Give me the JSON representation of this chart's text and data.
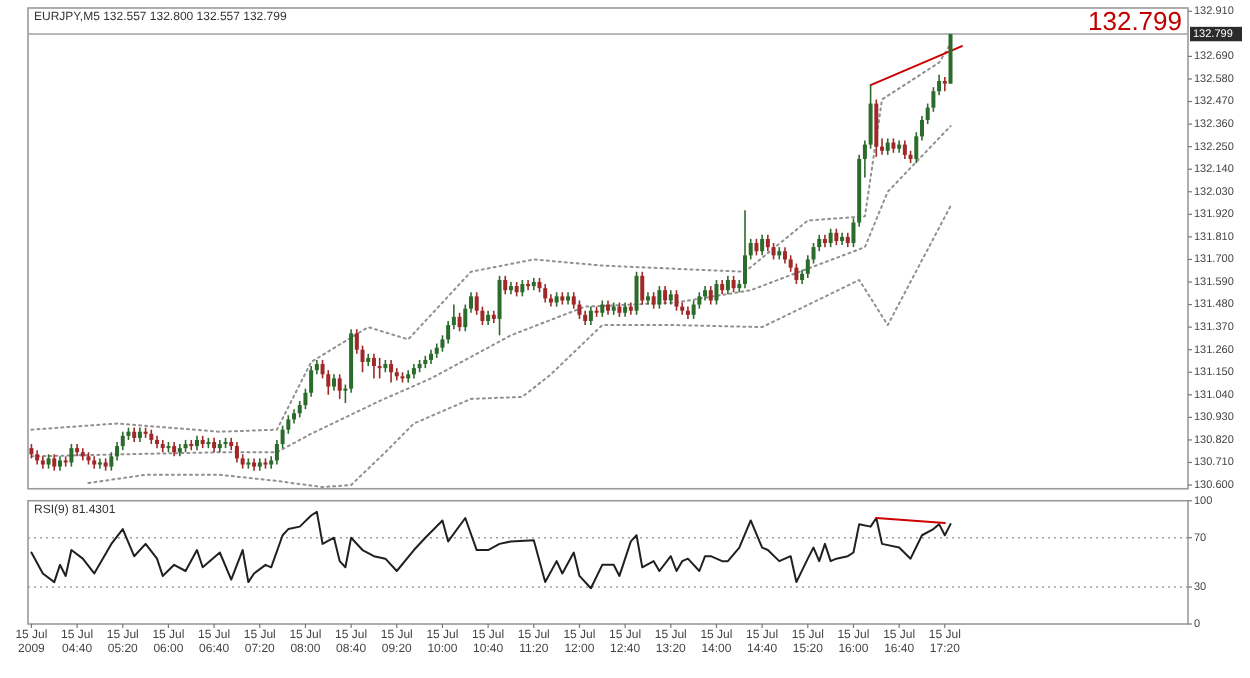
{
  "chart_data": [
    {
      "type": "candlestick",
      "title": "EURJPY,M5 132.557 132.800 132.557 132.799",
      "annotations": [
        "132.799"
      ],
      "x": [
        "2009-07-15T04:00",
        "2009-07-15T04:05",
        "2009-07-15T04:10",
        "2009-07-15T04:15",
        "2009-07-15T04:20",
        "2009-07-15T04:25",
        "2009-07-15T04:30",
        "2009-07-15T04:35",
        "2009-07-15T04:40",
        "2009-07-15T04:45",
        "2009-07-15T04:50",
        "2009-07-15T04:55",
        "2009-07-15T05:00",
        "2009-07-15T05:05",
        "2009-07-15T05:10",
        "2009-07-15T05:15",
        "2009-07-15T05:20",
        "2009-07-15T05:25",
        "2009-07-15T05:30",
        "2009-07-15T05:35",
        "2009-07-15T05:40",
        "2009-07-15T05:45",
        "2009-07-15T05:50",
        "2009-07-15T05:55",
        "2009-07-15T06:00",
        "2009-07-15T06:05",
        "2009-07-15T06:10",
        "2009-07-15T06:15",
        "2009-07-15T06:20",
        "2009-07-15T06:25",
        "2009-07-15T06:30",
        "2009-07-15T06:35",
        "2009-07-15T06:40",
        "2009-07-15T06:45",
        "2009-07-15T06:50",
        "2009-07-15T06:55",
        "2009-07-15T07:00",
        "2009-07-15T07:05",
        "2009-07-15T07:10",
        "2009-07-15T07:15",
        "2009-07-15T07:20",
        "2009-07-15T07:25",
        "2009-07-15T07:30",
        "2009-07-15T07:35",
        "2009-07-15T07:40",
        "2009-07-15T07:45",
        "2009-07-15T07:50",
        "2009-07-15T07:55",
        "2009-07-15T08:00",
        "2009-07-15T08:05",
        "2009-07-15T08:10",
        "2009-07-15T08:15",
        "2009-07-15T08:20",
        "2009-07-15T08:25",
        "2009-07-15T08:30",
        "2009-07-15T08:35",
        "2009-07-15T08:40",
        "2009-07-15T08:45",
        "2009-07-15T08:50",
        "2009-07-15T08:55",
        "2009-07-15T09:00",
        "2009-07-15T09:05",
        "2009-07-15T09:10",
        "2009-07-15T09:15",
        "2009-07-15T09:20",
        "2009-07-15T09:25",
        "2009-07-15T09:30",
        "2009-07-15T09:35",
        "2009-07-15T09:40",
        "2009-07-15T09:45",
        "2009-07-15T09:50",
        "2009-07-15T09:55",
        "2009-07-15T10:00",
        "2009-07-15T10:05",
        "2009-07-15T10:10",
        "2009-07-15T10:15",
        "2009-07-15T10:20",
        "2009-07-15T10:25",
        "2009-07-15T10:30",
        "2009-07-15T10:35",
        "2009-07-15T10:40",
        "2009-07-15T10:45",
        "2009-07-15T10:50",
        "2009-07-15T10:55",
        "2009-07-15T11:00",
        "2009-07-15T11:05",
        "2009-07-15T11:10",
        "2009-07-15T11:15",
        "2009-07-15T11:20",
        "2009-07-15T11:25",
        "2009-07-15T11:30",
        "2009-07-15T11:35",
        "2009-07-15T11:40",
        "2009-07-15T11:45",
        "2009-07-15T11:50",
        "2009-07-15T11:55",
        "2009-07-15T12:00",
        "2009-07-15T12:05",
        "2009-07-15T12:10",
        "2009-07-15T12:15",
        "2009-07-15T12:20",
        "2009-07-15T12:25",
        "2009-07-15T12:30",
        "2009-07-15T12:35",
        "2009-07-15T12:40",
        "2009-07-15T12:45",
        "2009-07-15T12:50",
        "2009-07-15T12:55",
        "2009-07-15T13:00",
        "2009-07-15T13:05",
        "2009-07-15T13:10",
        "2009-07-15T13:15",
        "2009-07-15T13:20",
        "2009-07-15T13:25",
        "2009-07-15T13:30",
        "2009-07-15T13:35",
        "2009-07-15T13:40",
        "2009-07-15T13:45",
        "2009-07-15T13:50",
        "2009-07-15T13:55",
        "2009-07-15T14:00",
        "2009-07-15T14:05",
        "2009-07-15T14:10",
        "2009-07-15T14:15",
        "2009-07-15T14:20",
        "2009-07-15T14:25",
        "2009-07-15T14:30",
        "2009-07-15T14:35",
        "2009-07-15T14:40",
        "2009-07-15T14:45",
        "2009-07-15T14:50",
        "2009-07-15T14:55",
        "2009-07-15T15:00",
        "2009-07-15T15:05",
        "2009-07-15T15:10",
        "2009-07-15T15:15",
        "2009-07-15T15:20",
        "2009-07-15T15:25",
        "2009-07-15T15:30",
        "2009-07-15T15:35",
        "2009-07-15T15:40",
        "2009-07-15T15:45",
        "2009-07-15T15:50",
        "2009-07-15T15:55",
        "2009-07-15T16:00",
        "2009-07-15T16:05",
        "2009-07-15T16:10",
        "2009-07-15T16:15",
        "2009-07-15T16:20",
        "2009-07-15T16:25",
        "2009-07-15T16:30",
        "2009-07-15T16:35",
        "2009-07-15T16:40",
        "2009-07-15T16:45",
        "2009-07-15T16:50",
        "2009-07-15T16:55",
        "2009-07-15T17:00",
        "2009-07-15T17:05",
        "2009-07-15T17:10",
        "2009-07-15T17:15",
        "2009-07-15T17:20",
        "2009-07-15T17:25"
      ],
      "ohlc": [
        [
          130.78,
          130.8,
          130.73,
          130.75
        ],
        [
          130.75,
          130.77,
          130.7,
          130.72
        ],
        [
          130.72,
          130.74,
          130.68,
          130.7
        ],
        [
          130.7,
          130.75,
          130.68,
          130.73
        ],
        [
          130.73,
          130.75,
          130.67,
          130.69
        ],
        [
          130.69,
          130.74,
          130.67,
          130.72
        ],
        [
          130.72,
          130.74,
          130.69,
          130.71
        ],
        [
          130.71,
          130.8,
          130.69,
          130.78
        ],
        [
          130.78,
          130.8,
          130.74,
          130.76
        ],
        [
          130.76,
          130.78,
          130.72,
          130.74
        ],
        [
          130.74,
          130.76,
          130.7,
          130.72
        ],
        [
          130.72,
          130.74,
          130.68,
          130.7
        ],
        [
          130.7,
          130.73,
          130.68,
          130.71
        ],
        [
          130.71,
          130.73,
          130.67,
          130.69
        ],
        [
          130.69,
          130.76,
          130.67,
          130.74
        ],
        [
          130.74,
          130.81,
          130.72,
          130.79
        ],
        [
          130.79,
          130.86,
          130.77,
          130.84
        ],
        [
          130.84,
          130.88,
          130.82,
          130.86
        ],
        [
          130.86,
          130.88,
          130.81,
          130.83
        ],
        [
          130.83,
          130.88,
          130.81,
          130.86
        ],
        [
          130.86,
          130.88,
          130.83,
          130.85
        ],
        [
          130.85,
          130.87,
          130.8,
          130.82
        ],
        [
          130.82,
          130.84,
          130.78,
          130.8
        ],
        [
          130.8,
          130.82,
          130.76,
          130.78
        ],
        [
          130.78,
          130.81,
          130.76,
          130.79
        ],
        [
          130.79,
          130.81,
          130.74,
          130.76
        ],
        [
          130.76,
          130.8,
          130.74,
          130.78
        ],
        [
          130.78,
          130.82,
          130.76,
          130.8
        ],
        [
          130.8,
          130.82,
          130.77,
          130.79
        ],
        [
          130.79,
          130.84,
          130.77,
          130.82
        ],
        [
          130.82,
          130.84,
          130.78,
          130.8
        ],
        [
          130.8,
          130.83,
          130.78,
          130.81
        ],
        [
          130.81,
          130.83,
          130.76,
          130.78
        ],
        [
          130.78,
          130.82,
          130.76,
          130.8
        ],
        [
          130.8,
          130.83,
          130.78,
          130.81
        ],
        [
          130.81,
          130.83,
          130.77,
          130.79
        ],
        [
          130.79,
          130.81,
          130.71,
          130.73
        ],
        [
          130.73,
          130.75,
          130.68,
          130.7
        ],
        [
          130.7,
          130.73,
          130.68,
          130.71
        ],
        [
          130.71,
          130.73,
          130.67,
          130.69
        ],
        [
          130.69,
          130.73,
          130.67,
          130.71
        ],
        [
          130.71,
          130.73,
          130.68,
          130.7
        ],
        [
          130.7,
          130.74,
          130.68,
          130.72
        ],
        [
          130.72,
          130.82,
          130.7,
          130.8
        ],
        [
          130.8,
          130.89,
          130.78,
          130.87
        ],
        [
          130.87,
          130.94,
          130.85,
          130.92
        ],
        [
          130.92,
          130.97,
          130.9,
          130.95
        ],
        [
          130.95,
          131.01,
          130.93,
          130.99
        ],
        [
          130.99,
          131.07,
          130.97,
          131.05
        ],
        [
          131.05,
          131.18,
          131.03,
          131.16
        ],
        [
          131.16,
          131.21,
          131.14,
          131.19
        ],
        [
          131.19,
          131.21,
          131.12,
          131.14
        ],
        [
          131.14,
          131.16,
          131.04,
          131.08
        ],
        [
          131.08,
          131.14,
          131.06,
          131.12
        ],
        [
          131.12,
          131.14,
          131.02,
          131.06
        ],
        [
          131.06,
          131.09,
          131.0,
          131.07
        ],
        [
          131.07,
          131.36,
          131.05,
          131.34
        ],
        [
          131.34,
          131.36,
          131.24,
          131.26
        ],
        [
          131.26,
          131.28,
          131.15,
          131.2
        ],
        [
          131.2,
          131.24,
          131.18,
          131.22
        ],
        [
          131.22,
          131.24,
          131.12,
          131.18
        ],
        [
          131.18,
          131.22,
          131.12,
          131.17
        ],
        [
          131.17,
          131.21,
          131.15,
          131.19
        ],
        [
          131.19,
          131.21,
          131.1,
          131.15
        ],
        [
          131.15,
          131.17,
          131.11,
          131.13
        ],
        [
          131.13,
          131.15,
          131.1,
          131.12
        ],
        [
          131.12,
          131.16,
          131.1,
          131.14
        ],
        [
          131.14,
          131.19,
          131.12,
          131.17
        ],
        [
          131.17,
          131.21,
          131.15,
          131.19
        ],
        [
          131.19,
          131.23,
          131.17,
          131.21
        ],
        [
          131.21,
          131.26,
          131.19,
          131.24
        ],
        [
          131.24,
          131.29,
          131.22,
          131.27
        ],
        [
          131.27,
          131.33,
          131.25,
          131.31
        ],
        [
          131.31,
          131.4,
          131.29,
          131.38
        ],
        [
          131.38,
          131.48,
          131.36,
          131.42
        ],
        [
          131.42,
          131.44,
          131.35,
          131.37
        ],
        [
          131.37,
          131.48,
          131.35,
          131.46
        ],
        [
          131.46,
          131.54,
          131.44,
          131.52
        ],
        [
          131.52,
          131.54,
          131.43,
          131.45
        ],
        [
          131.45,
          131.47,
          131.38,
          131.4
        ],
        [
          131.4,
          131.45,
          131.38,
          131.43
        ],
        [
          131.43,
          131.45,
          131.39,
          131.41
        ],
        [
          131.41,
          131.62,
          131.33,
          131.6
        ],
        [
          131.6,
          131.62,
          131.53,
          131.55
        ],
        [
          131.55,
          131.59,
          131.53,
          131.57
        ],
        [
          131.57,
          131.59,
          131.52,
          131.54
        ],
        [
          131.54,
          131.6,
          131.52,
          131.58
        ],
        [
          131.58,
          131.6,
          131.55,
          131.57
        ],
        [
          131.57,
          131.61,
          131.55,
          131.59
        ],
        [
          131.59,
          131.61,
          131.54,
          131.56
        ],
        [
          131.56,
          131.58,
          131.49,
          131.51
        ],
        [
          131.51,
          131.53,
          131.47,
          131.49
        ],
        [
          131.49,
          131.54,
          131.47,
          131.52
        ],
        [
          131.52,
          131.54,
          131.48,
          131.5
        ],
        [
          131.5,
          131.54,
          131.48,
          131.52
        ],
        [
          131.52,
          131.54,
          131.46,
          131.48
        ],
        [
          131.48,
          131.5,
          131.41,
          131.43
        ],
        [
          131.43,
          131.45,
          131.38,
          131.4
        ],
        [
          131.4,
          131.47,
          131.38,
          131.45
        ],
        [
          131.45,
          131.47,
          131.42,
          131.44
        ],
        [
          131.44,
          131.5,
          131.42,
          131.48
        ],
        [
          131.48,
          131.5,
          131.43,
          131.45
        ],
        [
          131.45,
          131.49,
          131.43,
          131.47
        ],
        [
          131.47,
          131.49,
          131.42,
          131.44
        ],
        [
          131.44,
          131.49,
          131.42,
          131.47
        ],
        [
          131.47,
          131.49,
          131.43,
          131.45
        ],
        [
          131.45,
          131.64,
          131.43,
          131.62
        ],
        [
          131.62,
          131.64,
          131.48,
          131.5
        ],
        [
          131.5,
          131.54,
          131.48,
          131.52
        ],
        [
          131.52,
          131.54,
          131.46,
          131.48
        ],
        [
          131.48,
          131.57,
          131.46,
          131.55
        ],
        [
          131.55,
          131.57,
          131.48,
          131.5
        ],
        [
          131.5,
          131.55,
          131.48,
          131.53
        ],
        [
          131.53,
          131.55,
          131.45,
          131.47
        ],
        [
          131.47,
          131.49,
          131.43,
          131.45
        ],
        [
          131.45,
          131.47,
          131.41,
          131.43
        ],
        [
          131.43,
          131.5,
          131.41,
          131.48
        ],
        [
          131.48,
          131.54,
          131.46,
          131.52
        ],
        [
          131.52,
          131.57,
          131.5,
          131.55
        ],
        [
          131.55,
          131.57,
          131.48,
          131.5
        ],
        [
          131.5,
          131.6,
          131.48,
          131.58
        ],
        [
          131.58,
          131.6,
          131.53,
          131.55
        ],
        [
          131.55,
          131.62,
          131.53,
          131.6
        ],
        [
          131.6,
          131.62,
          131.54,
          131.56
        ],
        [
          131.56,
          131.6,
          131.54,
          131.58
        ],
        [
          131.58,
          131.94,
          131.56,
          131.72
        ],
        [
          131.72,
          131.8,
          131.7,
          131.78
        ],
        [
          131.78,
          131.8,
          131.72,
          131.74
        ],
        [
          131.74,
          131.82,
          131.72,
          131.8
        ],
        [
          131.8,
          131.82,
          131.74,
          131.76
        ],
        [
          131.76,
          131.78,
          131.7,
          131.72
        ],
        [
          131.72,
          131.76,
          131.7,
          131.74
        ],
        [
          131.74,
          131.76,
          131.68,
          131.7
        ],
        [
          131.7,
          131.72,
          131.64,
          131.66
        ],
        [
          131.66,
          131.68,
          131.58,
          131.6
        ],
        [
          131.6,
          131.65,
          131.58,
          131.63
        ],
        [
          131.63,
          131.72,
          131.61,
          131.7
        ],
        [
          131.7,
          131.78,
          131.68,
          131.76
        ],
        [
          131.76,
          131.82,
          131.74,
          131.8
        ],
        [
          131.8,
          131.82,
          131.76,
          131.78
        ],
        [
          131.78,
          131.85,
          131.76,
          131.83
        ],
        [
          131.83,
          131.85,
          131.77,
          131.79
        ],
        [
          131.79,
          131.83,
          131.77,
          131.81
        ],
        [
          131.81,
          131.83,
          131.76,
          131.78
        ],
        [
          131.78,
          131.9,
          131.76,
          131.88
        ],
        [
          131.88,
          132.21,
          131.86,
          132.19
        ],
        [
          132.19,
          132.28,
          132.1,
          132.26
        ],
        [
          132.26,
          132.55,
          132.24,
          132.46
        ],
        [
          132.46,
          132.48,
          132.2,
          132.25
        ],
        [
          132.25,
          132.29,
          132.21,
          132.23
        ],
        [
          132.23,
          132.29,
          132.21,
          132.27
        ],
        [
          132.27,
          132.29,
          132.22,
          132.24
        ],
        [
          132.24,
          132.28,
          132.22,
          132.26
        ],
        [
          132.26,
          132.28,
          132.19,
          132.21
        ],
        [
          132.21,
          132.23,
          132.17,
          132.19
        ],
        [
          132.19,
          132.32,
          132.17,
          132.3
        ],
        [
          132.3,
          132.4,
          132.28,
          132.38
        ],
        [
          132.38,
          132.46,
          132.36,
          132.44
        ],
        [
          132.44,
          132.54,
          132.42,
          132.52
        ],
        [
          132.52,
          132.6,
          132.5,
          132.57
        ],
        [
          132.57,
          132.59,
          132.52,
          132.557
        ],
        [
          132.557,
          132.8,
          132.557,
          132.799
        ]
      ],
      "colors": [
        "#a02828",
        "#a02828",
        "#a02828",
        "#2b6b2b",
        "#a02828",
        "#2b6b2b",
        "#a02828",
        "#2b6b2b",
        "#a02828",
        "#a02828",
        "#a02828",
        "#a02828",
        "#2b6b2b",
        "#a02828",
        "#2b6b2b",
        "#2b6b2b",
        "#2b6b2b",
        "#2b6b2b",
        "#a02828",
        "#2b6b2b",
        "#a02828",
        "#a02828",
        "#a02828",
        "#a02828",
        "#2b6b2b",
        "#a02828",
        "#2b6b2b",
        "#2b6b2b",
        "#a02828",
        "#2b6b2b",
        "#a02828",
        "#2b6b2b",
        "#a02828",
        "#2b6b2b",
        "#2b6b2b",
        "#a02828",
        "#a02828",
        "#a02828",
        "#2b6b2b",
        "#a02828",
        "#2b6b2b",
        "#a02828",
        "#2b6b2b",
        "#2b6b2b",
        "#2b6b2b",
        "#2b6b2b",
        "#2b6b2b",
        "#2b6b2b",
        "#2b6b2b",
        "#2b6b2b",
        "#2b6b2b",
        "#a02828",
        "#a02828",
        "#2b6b2b",
        "#a02828",
        "#2b6b2b",
        "#2b6b2b",
        "#a02828",
        "#a02828",
        "#2b6b2b",
        "#a02828",
        "#a02828",
        "#2b6b2b",
        "#a02828",
        "#a02828",
        "#a02828",
        "#2b6b2b",
        "#2b6b2b",
        "#2b6b2b",
        "#2b6b2b",
        "#2b6b2b",
        "#2b6b2b",
        "#2b6b2b",
        "#2b6b2b",
        "#2b6b2b",
        "#a02828",
        "#2b6b2b",
        "#2b6b2b",
        "#a02828",
        "#a02828",
        "#2b6b2b",
        "#a02828",
        "#2b6b2b",
        "#a02828",
        "#2b6b2b",
        "#a02828",
        "#2b6b2b",
        "#a02828",
        "#2b6b2b",
        "#a02828",
        "#a02828",
        "#a02828",
        "#2b6b2b",
        "#a02828",
        "#2b6b2b",
        "#a02828",
        "#a02828",
        "#a02828",
        "#2b6b2b",
        "#a02828",
        "#2b6b2b",
        "#a02828",
        "#2b6b2b",
        "#a02828",
        "#2b6b2b",
        "#a02828",
        "#2b6b2b",
        "#a02828",
        "#2b6b2b",
        "#a02828",
        "#2b6b2b",
        "#a02828",
        "#2b6b2b",
        "#a02828",
        "#a02828",
        "#a02828",
        "#2b6b2b",
        "#2b6b2b",
        "#2b6b2b",
        "#a02828",
        "#2b6b2b",
        "#a02828",
        "#2b6b2b",
        "#a02828",
        "#2b6b2b",
        "#2b6b2b",
        "#2b6b2b",
        "#a02828",
        "#2b6b2b",
        "#a02828",
        "#a02828",
        "#2b6b2b",
        "#a02828",
        "#a02828",
        "#a02828",
        "#2b6b2b",
        "#2b6b2b",
        "#2b6b2b",
        "#2b6b2b",
        "#a02828",
        "#2b6b2b",
        "#a02828",
        "#2b6b2b",
        "#a02828",
        "#2b6b2b",
        "#2b6b2b",
        "#2b6b2b",
        "#2b6b2b",
        "#a02828",
        "#a02828",
        "#2b6b2b",
        "#a02828",
        "#2b6b2b",
        "#a02828",
        "#a02828",
        "#2b6b2b",
        "#2b6b2b",
        "#2b6b2b",
        "#2b6b2b",
        "#2b6b2b",
        "#a02828",
        "#2b6b2b"
      ],
      "series": [
        {
          "type": "line",
          "color": "#909090",
          "line_style": "dotted",
          "x": [
            "2009-07-15T04:00",
            "2009-07-15T05:15",
            "2009-07-15T06:45",
            "2009-07-15T07:35",
            "2009-07-15T08:05",
            "2009-07-15T08:55",
            "2009-07-15T09:30",
            "2009-07-15T10:25",
            "2009-07-15T11:20",
            "2009-07-15T12:20",
            "2009-07-15T14:25",
            "2009-07-15T15:20",
            "2009-07-15T16:10",
            "2009-07-15T16:25",
            "2009-07-15T17:15",
            "2009-07-15T17:25"
          ],
          "values": [
            130.87,
            130.9,
            130.86,
            130.87,
            131.2,
            131.37,
            131.31,
            131.64,
            131.7,
            131.67,
            131.64,
            131.89,
            131.91,
            132.48,
            132.66,
            132.75
          ]
        },
        {
          "type": "line",
          "color": "#909090",
          "line_style": "dotted",
          "x": [
            "2009-07-15T04:00",
            "2009-07-15T06:45",
            "2009-07-15T07:35",
            "2009-07-15T08:05",
            "2009-07-15T09:05",
            "2009-07-15T09:50",
            "2009-07-15T11:00",
            "2009-07-15T12:05",
            "2009-07-15T13:25",
            "2009-07-15T14:30",
            "2009-07-15T16:10",
            "2009-07-15T16:30",
            "2009-07-15T17:25"
          ],
          "values": [
            130.74,
            130.76,
            130.76,
            130.85,
            131.01,
            131.12,
            131.33,
            131.47,
            131.49,
            131.55,
            131.76,
            132.03,
            132.35
          ]
        },
        {
          "type": "line",
          "color": "#909090",
          "line_style": "dotted",
          "x": [
            "2009-07-15T04:50",
            "2009-07-15T05:40",
            "2009-07-15T06:45",
            "2009-07-15T07:35",
            "2009-07-15T08:15",
            "2009-07-15T08:40",
            "2009-07-15T09:10",
            "2009-07-15T09:35",
            "2009-07-15T10:25",
            "2009-07-15T11:10",
            "2009-07-15T11:35",
            "2009-07-15T12:20",
            "2009-07-15T13:25",
            "2009-07-15T14:40",
            "2009-07-15T16:05",
            "2009-07-15T16:30",
            "2009-07-15T17:25"
          ],
          "values": [
            130.61,
            130.65,
            130.65,
            130.62,
            130.59,
            130.6,
            130.76,
            130.9,
            131.02,
            131.03,
            131.14,
            131.38,
            131.38,
            131.37,
            131.6,
            131.38,
            131.96
          ]
        },
        {
          "type": "line",
          "color": "#cc0000",
          "line_style": "solid",
          "x": [
            "2009-07-15T16:15",
            "2009-07-15T17:35"
          ],
          "values": [
            132.55,
            132.74
          ]
        }
      ],
      "ref_lines": [
        {
          "axis": "y",
          "value": 132.799,
          "label": "132.799",
          "color": "#a0a0a0"
        }
      ],
      "xlim": [
        "2009-07-15T03:57",
        "2009-07-15T20:53"
      ],
      "ylim": [
        130.582,
        132.926
      ],
      "yticks": [
        {
          "value": 130.6,
          "label": "130.600"
        },
        {
          "value": 130.71,
          "label": "130.710"
        },
        {
          "value": 130.82,
          "label": "130.820"
        },
        {
          "value": 130.93,
          "label": "130.930"
        },
        {
          "value": 131.04,
          "label": "131.040"
        },
        {
          "value": 131.15,
          "label": "131.150"
        },
        {
          "value": 131.26,
          "label": "131.260"
        },
        {
          "value": 131.37,
          "label": "131.370"
        },
        {
          "value": 131.48,
          "label": "131.480"
        },
        {
          "value": 131.59,
          "label": "131.590"
        },
        {
          "value": 131.7,
          "label": "131.700"
        },
        {
          "value": 131.81,
          "label": "131.810"
        },
        {
          "value": 131.92,
          "label": "131.920"
        },
        {
          "value": 132.03,
          "label": "132.030"
        },
        {
          "value": 132.14,
          "label": "132.140"
        },
        {
          "value": 132.25,
          "label": "132.250"
        },
        {
          "value": 132.36,
          "label": "132.360"
        },
        {
          "value": 132.47,
          "label": "132.470"
        },
        {
          "value": 132.58,
          "label": "132.580"
        },
        {
          "value": 132.69,
          "label": "132.690"
        },
        {
          "value": 132.91,
          "label": "132.910"
        }
      ],
      "tick_labels": "y"
    },
    {
      "type": "line",
      "title": "RSI(9) 81.4301",
      "series": [
        {
          "color": "#202020",
          "x": [
            "2009-07-15T04:00",
            "2009-07-15T04:10",
            "2009-07-15T04:20",
            "2009-07-15T04:25",
            "2009-07-15T04:30",
            "2009-07-15T04:35",
            "2009-07-15T04:45",
            "2009-07-15T04:55",
            "2009-07-15T05:10",
            "2009-07-15T05:20",
            "2009-07-15T05:30",
            "2009-07-15T05:40",
            "2009-07-15T05:50",
            "2009-07-15T05:55",
            "2009-07-15T06:05",
            "2009-07-15T06:15",
            "2009-07-15T06:25",
            "2009-07-15T06:30",
            "2009-07-15T06:45",
            "2009-07-15T06:55",
            "2009-07-15T07:05",
            "2009-07-15T07:10",
            "2009-07-15T07:15",
            "2009-07-15T07:25",
            "2009-07-15T07:30",
            "2009-07-15T07:40",
            "2009-07-15T07:45",
            "2009-07-15T07:55",
            "2009-07-15T08:05",
            "2009-07-15T08:10",
            "2009-07-15T08:15",
            "2009-07-15T08:25",
            "2009-07-15T08:30",
            "2009-07-15T08:35",
            "2009-07-15T08:40",
            "2009-07-15T08:50",
            "2009-07-15T09:00",
            "2009-07-15T09:10",
            "2009-07-15T09:20",
            "2009-07-15T09:35",
            "2009-07-15T09:45",
            "2009-07-15T10:00",
            "2009-07-15T10:05",
            "2009-07-15T10:20",
            "2009-07-15T10:30",
            "2009-07-15T10:40",
            "2009-07-15T10:50",
            "2009-07-15T11:00",
            "2009-07-15T11:20",
            "2009-07-15T11:30",
            "2009-07-15T11:40",
            "2009-07-15T11:45",
            "2009-07-15T11:55",
            "2009-07-15T12:00",
            "2009-07-15T12:10",
            "2009-07-15T12:20",
            "2009-07-15T12:30",
            "2009-07-15T12:35",
            "2009-07-15T12:45",
            "2009-07-15T12:50",
            "2009-07-15T12:55",
            "2009-07-15T13:05",
            "2009-07-15T13:10",
            "2009-07-15T13:20",
            "2009-07-15T13:25",
            "2009-07-15T13:30",
            "2009-07-15T13:35",
            "2009-07-15T13:45",
            "2009-07-15T13:50",
            "2009-07-15T13:55",
            "2009-07-15T14:05",
            "2009-07-15T14:10",
            "2009-07-15T14:20",
            "2009-07-15T14:30",
            "2009-07-15T14:40",
            "2009-07-15T14:45",
            "2009-07-15T14:55",
            "2009-07-15T15:05",
            "2009-07-15T15:10",
            "2009-07-15T15:20",
            "2009-07-15T15:25",
            "2009-07-15T15:30",
            "2009-07-15T15:35",
            "2009-07-15T15:40",
            "2009-07-15T15:45",
            "2009-07-15T15:55",
            "2009-07-15T16:00",
            "2009-07-15T16:05",
            "2009-07-15T16:15",
            "2009-07-15T16:20",
            "2009-07-15T16:25",
            "2009-07-15T16:40",
            "2009-07-15T16:50",
            "2009-07-15T17:00",
            "2009-07-15T17:10",
            "2009-07-15T17:15",
            "2009-07-15T17:20",
            "2009-07-15T17:25"
          ],
          "values": [
            58,
            41,
            34,
            48,
            39,
            60,
            53,
            41,
            65,
            77,
            55,
            65,
            53,
            39,
            48,
            43,
            60,
            46,
            58,
            36,
            60,
            34,
            41,
            48,
            46,
            72,
            77,
            79,
            88,
            91,
            65,
            70,
            51,
            46,
            70,
            60,
            55,
            53,
            43,
            60,
            70,
            84,
            67,
            86,
            60,
            60,
            65,
            67,
            68,
            34,
            51,
            41,
            58,
            39,
            29,
            48,
            48,
            39,
            67,
            72,
            46,
            51,
            43,
            55,
            43,
            51,
            53,
            43,
            55,
            55,
            51,
            51,
            62,
            84,
            62,
            60,
            51,
            55,
            34,
            53,
            62,
            51,
            65,
            51,
            53,
            55,
            58,
            81,
            79,
            86,
            65,
            62,
            53,
            72,
            77,
            81,
            72,
            81
          ]
        },
        {
          "color": "#cc0000",
          "line_style": "solid",
          "x": [
            "2009-07-15T16:20",
            "2009-07-15T17:20"
          ],
          "values": [
            86,
            82
          ]
        }
      ],
      "ref_lines": [
        {
          "axis": "y",
          "value": 70,
          "color": "#a0a0a0",
          "line_style": "dotted"
        },
        {
          "axis": "y",
          "value": 30,
          "color": "#a0a0a0",
          "line_style": "dotted"
        }
      ],
      "xlim": [
        "2009-07-15T03:57",
        "2009-07-15T20:53"
      ],
      "xticks": [
        {
          "value": "2009-07-15T04:00",
          "label": "15 Jul 2009"
        },
        {
          "value": "2009-07-15T04:40",
          "label": "15 Jul 04:40"
        },
        {
          "value": "2009-07-15T05:20",
          "label": "15 Jul 05:20"
        },
        {
          "value": "2009-07-15T06:00",
          "label": "15 Jul 06:00"
        },
        {
          "value": "2009-07-15T06:40",
          "label": "15 Jul 06:40"
        },
        {
          "value": "2009-07-15T07:20",
          "label": "15 Jul 07:20"
        },
        {
          "value": "2009-07-15T08:00",
          "label": "15 Jul 08:00"
        },
        {
          "value": "2009-07-15T08:40",
          "label": "15 Jul 08:40"
        },
        {
          "value": "2009-07-15T09:20",
          "label": "15 Jul 09:20"
        },
        {
          "value": "2009-07-15T10:00",
          "label": "15 Jul 10:00"
        },
        {
          "value": "2009-07-15T10:40",
          "label": "15 Jul 10:40"
        },
        {
          "value": "2009-07-15T11:20",
          "label": "15 Jul 11:20"
        },
        {
          "value": "2009-07-15T12:00",
          "label": "15 Jul 12:00"
        },
        {
          "value": "2009-07-15T12:40",
          "label": "15 Jul 12:40"
        },
        {
          "value": "2009-07-15T13:20",
          "label": "15 Jul 13:20"
        },
        {
          "value": "2009-07-15T14:00",
          "label": "15 Jul 14:00"
        },
        {
          "value": "2009-07-15T14:40",
          "label": "15 Jul 14:40"
        },
        {
          "value": "2009-07-15T15:20",
          "label": "15 Jul 15:20"
        },
        {
          "value": "2009-07-15T16:00",
          "label": "15 Jul 16:00"
        },
        {
          "value": "2009-07-15T16:40",
          "label": "15 Jul 16:40"
        },
        {
          "value": "2009-07-15T17:20",
          "label": "15 Jul 17:20"
        }
      ],
      "ylim": [
        0,
        100
      ],
      "yticks": [
        0,
        30,
        70,
        100
      ]
    }
  ]
}
